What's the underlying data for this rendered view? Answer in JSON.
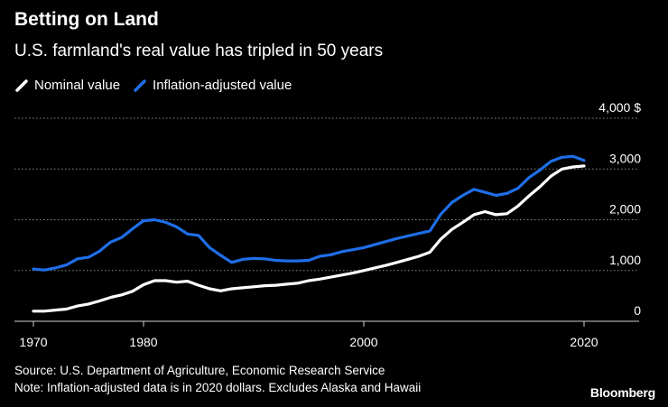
{
  "chart_data": {
    "type": "line",
    "title": "Betting on Land",
    "subtitle": "U.S. farmland's real value has tripled in 50 years",
    "ylim": [
      0,
      4000
    ],
    "yticks": [
      {
        "value": 0,
        "label": "0"
      },
      {
        "value": 1000,
        "label": "1,000"
      },
      {
        "value": 2000,
        "label": "2,000"
      },
      {
        "value": 3000,
        "label": "3,000"
      },
      {
        "value": 4000,
        "label": "4,000 $"
      }
    ],
    "xlim": [
      1969,
      2022
    ],
    "xticks": [
      {
        "value": 1970,
        "label": "1970"
      },
      {
        "value": 1980,
        "label": "1980"
      },
      {
        "value": 2000,
        "label": "2000"
      },
      {
        "value": 2020,
        "label": "2020"
      }
    ],
    "series": [
      {
        "name": "Nominal value",
        "color": "#ffffff",
        "x": [
          1970,
          1971,
          1972,
          1973,
          1974,
          1975,
          1976,
          1977,
          1978,
          1979,
          1980,
          1981,
          1982,
          1983,
          1984,
          1985,
          1986,
          1987,
          1988,
          1989,
          1990,
          1991,
          1992,
          1993,
          1994,
          1995,
          1996,
          1997,
          1998,
          1999,
          2000,
          2001,
          2002,
          2003,
          2004,
          2005,
          2006,
          2007,
          2008,
          2009,
          2010,
          2011,
          2012,
          2013,
          2014,
          2015,
          2016,
          2017,
          2018,
          2019,
          2020
        ],
        "values": [
          200,
          200,
          220,
          240,
          300,
          340,
          400,
          470,
          520,
          590,
          720,
          800,
          800,
          770,
          790,
          710,
          640,
          600,
          640,
          660,
          680,
          700,
          710,
          730,
          750,
          800,
          830,
          870,
          910,
          950,
          1000,
          1050,
          1100,
          1160,
          1220,
          1280,
          1360,
          1620,
          1810,
          1950,
          2100,
          2160,
          2100,
          2120,
          2270,
          2470,
          2650,
          2860,
          3000,
          3040,
          3060
        ]
      },
      {
        "name": "Inflation-adjusted value",
        "color": "#1f6ee8",
        "x": [
          1970,
          1971,
          1972,
          1973,
          1974,
          1975,
          1976,
          1977,
          1978,
          1979,
          1980,
          1981,
          1982,
          1983,
          1984,
          1985,
          1986,
          1987,
          1988,
          1989,
          1990,
          1991,
          1992,
          1993,
          1994,
          1995,
          1996,
          1997,
          1998,
          1999,
          2000,
          2001,
          2002,
          2003,
          2004,
          2005,
          2006,
          2007,
          2008,
          2009,
          2010,
          2011,
          2012,
          2013,
          2014,
          2015,
          2016,
          2017,
          2018,
          2019,
          2020
        ],
        "values": [
          1030,
          1010,
          1050,
          1110,
          1230,
          1260,
          1380,
          1560,
          1650,
          1820,
          1980,
          2000,
          1950,
          1860,
          1720,
          1690,
          1450,
          1300,
          1160,
          1220,
          1240,
          1230,
          1200,
          1190,
          1190,
          1200,
          1280,
          1310,
          1370,
          1410,
          1450,
          1510,
          1570,
          1630,
          1680,
          1730,
          1780,
          2110,
          2340,
          2480,
          2600,
          2540,
          2480,
          2520,
          2620,
          2830,
          2980,
          3150,
          3230,
          3250,
          3170
        ]
      }
    ],
    "legend_position": "top-left",
    "grid": true
  },
  "footer": {
    "source": "Source: U.S. Department of Agriculture, Economic Research Service",
    "note": "Note: Inflation-adjusted data is in 2020 dollars. Excludes Alaska and Hawaii",
    "brand": "Bloomberg"
  }
}
